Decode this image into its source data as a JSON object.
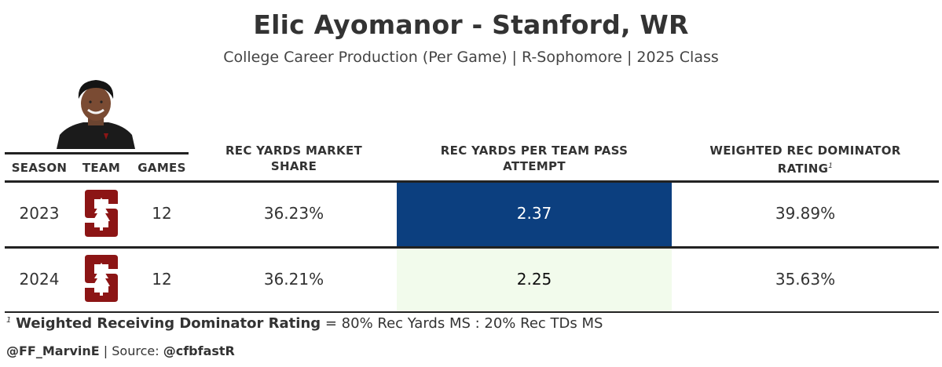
{
  "header": {
    "title": "Elic Ayomanor - Stanford, WR",
    "subtitle": "College Career Production (Per Game) | R-Sophomore | 2025 Class"
  },
  "table": {
    "columns": {
      "season": "SEASON",
      "team": "TEAM",
      "games": "GAMES",
      "market_share_line1": "REC YARDS MARKET",
      "market_share_line2": "SHARE",
      "yppa_line1": "REC YARDS PER TEAM PASS",
      "yppa_line2": "ATTEMPT",
      "dominator_line1": "WEIGHTED REC DOMINATOR",
      "dominator_line2": "RATING",
      "dominator_note_marker": "1"
    },
    "rows": [
      {
        "season": "2023",
        "team_logo": "stanford-logo",
        "games": "12",
        "market_share": "36.23%",
        "yppa": "2.37",
        "dominator": "39.89%"
      },
      {
        "season": "2024",
        "team_logo": "stanford-logo",
        "games": "12",
        "market_share": "36.21%",
        "yppa": "2.25",
        "dominator": "35.63%"
      }
    ],
    "highlight_colors": {
      "high": "#0c3f7f",
      "low": "#f2fbec",
      "logo_red": "#8c1515"
    }
  },
  "footer": {
    "note_marker": "1",
    "note_bold": "Weighted Receiving Dominator Rating",
    "note_rest": " = 80% Rec Yards MS : 20% Rec TDs MS",
    "author": "@FF_MarvinE",
    "source_label": " | Source: ",
    "source": "@cfbfastR"
  }
}
